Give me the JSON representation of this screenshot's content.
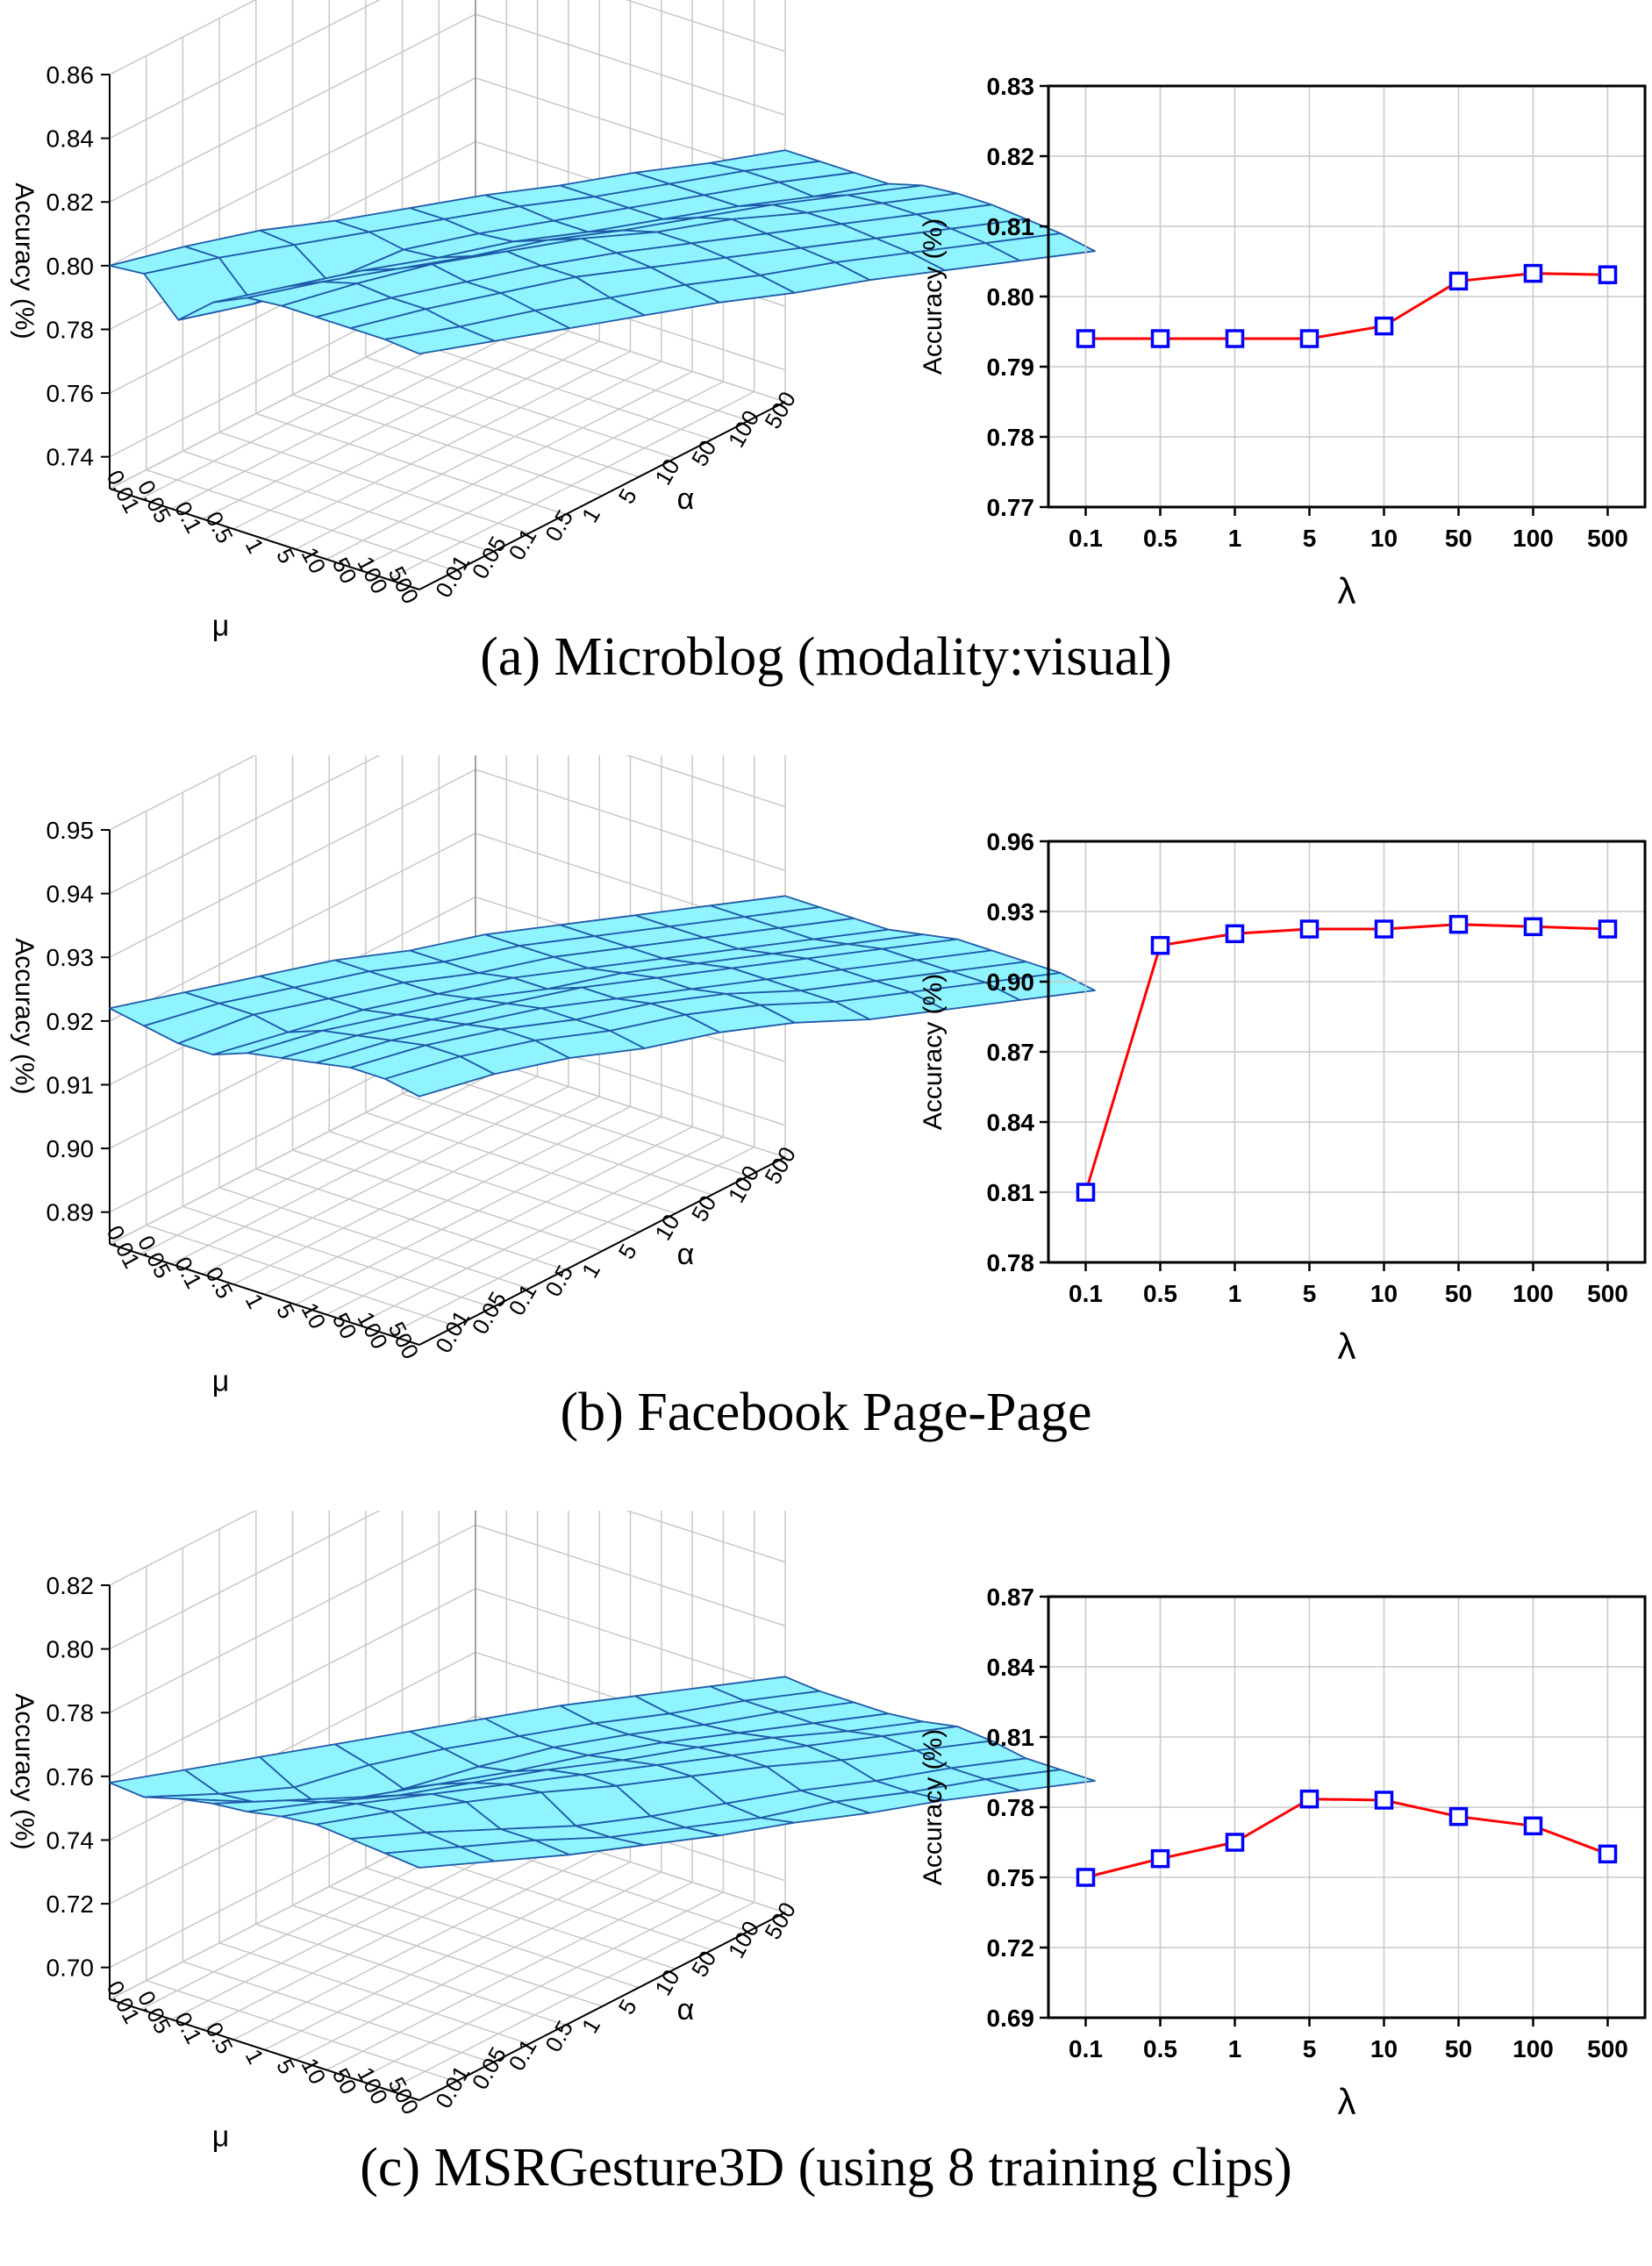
{
  "chart_data": [
    {
      "caption": "(a)  Microblog (modality:visual)",
      "surface": {
        "type": "surface",
        "axis_labels": {
          "z": "Accuracy (%)",
          "mu": "μ",
          "alpha": "α"
        },
        "z_ticks": [
          "0.74",
          "0.76",
          "0.78",
          "0.80",
          "0.82",
          "0.84",
          "0.86"
        ],
        "zlim": [
          0.73,
          0.86
        ],
        "mu_ticks": [
          "0.01",
          "0.05",
          "0.1",
          "0.5",
          "1",
          "5",
          "10",
          "50",
          "100",
          "500"
        ],
        "alpha_ticks": [
          "0.01",
          "0.05",
          "0.1",
          "0.5",
          "1",
          "5",
          "10",
          "50",
          "100",
          "500"
        ],
        "z": [
          [
            0.8,
            0.803,
            0.805,
            0.805,
            0.806,
            0.807,
            0.807,
            0.808,
            0.808,
            0.809
          ],
          [
            0.801,
            0.803,
            0.804,
            0.805,
            0.806,
            0.807,
            0.807,
            0.808,
            0.809,
            0.809
          ],
          [
            0.79,
            0.792,
            0.796,
            0.803,
            0.805,
            0.806,
            0.807,
            0.808,
            0.809,
            0.809
          ],
          [
            0.799,
            0.801,
            0.803,
            0.804,
            0.806,
            0.806,
            0.807,
            0.808,
            0.808,
            0.809
          ],
          [
            0.804,
            0.806,
            0.807,
            0.808,
            0.81,
            0.81,
            0.811,
            0.812,
            0.812,
            0.812
          ],
          [
            0.805,
            0.809,
            0.812,
            0.813,
            0.814,
            0.813,
            0.814,
            0.813,
            0.813,
            0.813
          ],
          [
            0.805,
            0.808,
            0.81,
            0.812,
            0.813,
            0.813,
            0.813,
            0.813,
            0.813,
            0.813
          ],
          [
            0.805,
            0.808,
            0.81,
            0.812,
            0.812,
            0.812,
            0.812,
            0.812,
            0.812,
            0.812
          ],
          [
            0.805,
            0.806,
            0.808,
            0.809,
            0.81,
            0.81,
            0.811,
            0.811,
            0.811,
            0.811
          ],
          [
            0.804,
            0.805,
            0.806,
            0.807,
            0.808,
            0.808,
            0.809,
            0.809,
            0.809,
            0.809
          ]
        ]
      },
      "line": {
        "type": "line",
        "xlabel": "λ",
        "ylabel": "Accuracy (%)",
        "categories": [
          "0.1",
          "0.5",
          "1",
          "5",
          "10",
          "50",
          "100",
          "500"
        ],
        "y_ticks": [
          "0.77",
          "0.78",
          "0.79",
          "0.80",
          "0.81",
          "0.82",
          "0.83"
        ],
        "ylim": [
          0.77,
          0.83
        ],
        "values": [
          0.794,
          0.794,
          0.794,
          0.794,
          0.7958,
          0.8022,
          0.8033,
          0.8031
        ],
        "grid": true,
        "line_color": "#ff0000",
        "marker_color": "#0000ff"
      }
    },
    {
      "caption": "(b)  Facebook Page-Page",
      "surface": {
        "type": "surface",
        "axis_labels": {
          "z": "Accuracy (%)",
          "mu": "μ",
          "alpha": "α"
        },
        "z_ticks": [
          "0.89",
          "0.90",
          "0.91",
          "0.92",
          "0.93",
          "0.94",
          "0.95"
        ],
        "zlim": [
          0.885,
          0.95
        ],
        "mu_ticks": [
          "0.01",
          "0.05",
          "0.1",
          "0.5",
          "1",
          "5",
          "10",
          "50",
          "100",
          "500"
        ],
        "alpha_ticks": [
          "0.01",
          "0.05",
          "0.1",
          "0.5",
          "1",
          "5",
          "10",
          "50",
          "100",
          "500"
        ],
        "z": [
          [
            0.922,
            0.923,
            0.924,
            0.925,
            0.925,
            0.926,
            0.926,
            0.926,
            0.926,
            0.926
          ],
          [
            0.921,
            0.923,
            0.924,
            0.925,
            0.925,
            0.926,
            0.926,
            0.926,
            0.926,
            0.926
          ],
          [
            0.92,
            0.923,
            0.924,
            0.925,
            0.925,
            0.926,
            0.926,
            0.926,
            0.926,
            0.926
          ],
          [
            0.92,
            0.922,
            0.924,
            0.925,
            0.926,
            0.926,
            0.926,
            0.926,
            0.926,
            0.926
          ],
          [
            0.922,
            0.924,
            0.925,
            0.926,
            0.926,
            0.927,
            0.927,
            0.927,
            0.927,
            0.927
          ],
          [
            0.923,
            0.925,
            0.926,
            0.927,
            0.928,
            0.928,
            0.928,
            0.928,
            0.928,
            0.928
          ],
          [
            0.924,
            0.926,
            0.927,
            0.928,
            0.928,
            0.928,
            0.928,
            0.928,
            0.928,
            0.928
          ],
          [
            0.925,
            0.927,
            0.928,
            0.928,
            0.929,
            0.929,
            0.928,
            0.928,
            0.928,
            0.928
          ],
          [
            0.925,
            0.927,
            0.928,
            0.928,
            0.929,
            0.929,
            0.928,
            0.928,
            0.928,
            0.928
          ],
          [
            0.924,
            0.926,
            0.927,
            0.927,
            0.928,
            0.928,
            0.927,
            0.927,
            0.927,
            0.927
          ]
        ]
      },
      "line": {
        "type": "line",
        "xlabel": "λ",
        "ylabel": "Accuracy (%)",
        "categories": [
          "0.1",
          "0.5",
          "1",
          "5",
          "10",
          "50",
          "100",
          "500"
        ],
        "y_ticks": [
          "0.78",
          "0.81",
          "0.84",
          "0.87",
          "0.90",
          "0.93",
          "0.96"
        ],
        "ylim": [
          0.78,
          0.96
        ],
        "values": [
          0.81,
          0.9155,
          0.9205,
          0.9225,
          0.9225,
          0.9245,
          0.9235,
          0.9225
        ],
        "grid": true,
        "line_color": "#ff0000",
        "marker_color": "#0000ff"
      }
    },
    {
      "caption": "(c)  MSRGesture3D (using 8 training clips)",
      "surface": {
        "type": "surface",
        "axis_labels": {
          "z": "Accuracy (%)",
          "mu": "μ",
          "alpha": "α"
        },
        "z_ticks": [
          "0.70",
          "0.72",
          "0.74",
          "0.76",
          "0.78",
          "0.80",
          "0.82"
        ],
        "zlim": [
          0.69,
          0.82
        ],
        "mu_ticks": [
          "0.01",
          "0.05",
          "0.1",
          "0.5",
          "1",
          "5",
          "10",
          "50",
          "100",
          "500"
        ],
        "alpha_ticks": [
          "0.01",
          "0.05",
          "0.1",
          "0.5",
          "1",
          "5",
          "10",
          "50",
          "100",
          "500"
        ],
        "z": [
          [
            0.758,
            0.759,
            0.76,
            0.761,
            0.762,
            0.763,
            0.764,
            0.764,
            0.764,
            0.764
          ],
          [
            0.757,
            0.755,
            0.754,
            0.758,
            0.76,
            0.761,
            0.762,
            0.762,
            0.763,
            0.763
          ],
          [
            0.76,
            0.756,
            0.75,
            0.754,
            0.758,
            0.761,
            0.762,
            0.762,
            0.763,
            0.763
          ],
          [
            0.762,
            0.76,
            0.758,
            0.759,
            0.76,
            0.762,
            0.763,
            0.763,
            0.763,
            0.763
          ],
          [
            0.763,
            0.763,
            0.762,
            0.763,
            0.764,
            0.764,
            0.765,
            0.765,
            0.764,
            0.764
          ],
          [
            0.765,
            0.766,
            0.766,
            0.766,
            0.766,
            0.766,
            0.766,
            0.766,
            0.766,
            0.766
          ],
          [
            0.766,
            0.767,
            0.767,
            0.767,
            0.766,
            0.766,
            0.766,
            0.765,
            0.765,
            0.765
          ],
          [
            0.765,
            0.764,
            0.762,
            0.76,
            0.76,
            0.761,
            0.762,
            0.762,
            0.763,
            0.763
          ],
          [
            0.764,
            0.763,
            0.762,
            0.76,
            0.76,
            0.76,
            0.762,
            0.762,
            0.763,
            0.763
          ],
          [
            0.763,
            0.762,
            0.761,
            0.761,
            0.761,
            0.762,
            0.762,
            0.763,
            0.763,
            0.763
          ]
        ]
      },
      "line": {
        "type": "line",
        "xlabel": "λ",
        "ylabel": "Accuracy (%)",
        "categories": [
          "0.1",
          "0.5",
          "1",
          "5",
          "10",
          "50",
          "100",
          "500"
        ],
        "y_ticks": [
          "0.69",
          "0.72",
          "0.75",
          "0.78",
          "0.81",
          "0.84",
          "0.87"
        ],
        "ylim": [
          0.69,
          0.87
        ],
        "values": [
          0.75,
          0.758,
          0.765,
          0.7835,
          0.783,
          0.776,
          0.772,
          0.76
        ],
        "grid": true,
        "line_color": "#ff0000",
        "marker_color": "#0000ff"
      }
    }
  ]
}
